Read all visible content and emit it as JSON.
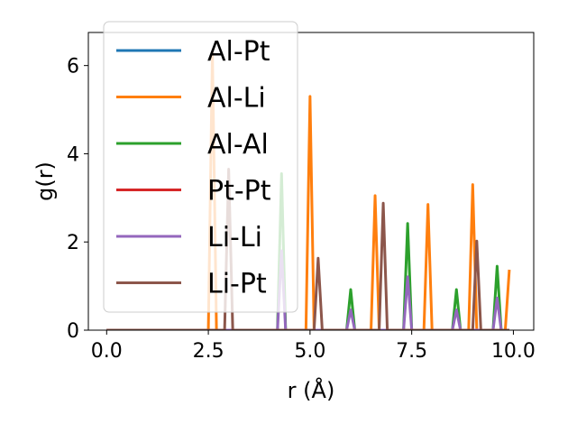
{
  "chart_data": {
    "type": "line",
    "xlabel": "r (Å)",
    "ylabel": "g(r)",
    "xlim": [
      -0.45,
      10.5
    ],
    "ylim": [
      0,
      6.75
    ],
    "xticks": [
      0.0,
      2.5,
      5.0,
      7.5,
      10.0
    ],
    "xtick_labels": [
      "0.0",
      "2.5",
      "5.0",
      "7.5",
      "10.0"
    ],
    "yticks": [
      0,
      2,
      4,
      6
    ],
    "ytick_labels": [
      "0",
      "2",
      "4",
      "6"
    ],
    "grid": false,
    "legend_position": "top-left",
    "series": [
      {
        "name": "Al-Pt",
        "color": "#1f77b4",
        "points": [
          [
            0,
            0
          ],
          [
            9.9,
            0
          ]
        ]
      },
      {
        "name": "Al-Li",
        "color": "#ff7f0e",
        "points": [
          [
            0,
            0
          ],
          [
            2.5,
            0
          ],
          [
            2.6,
            6.3
          ],
          [
            2.7,
            0
          ],
          [
            4.9,
            0
          ],
          [
            5.0,
            5.3
          ],
          [
            5.1,
            0
          ],
          [
            6.5,
            0
          ],
          [
            6.6,
            3.05
          ],
          [
            6.7,
            0
          ],
          [
            7.8,
            0
          ],
          [
            7.9,
            2.85
          ],
          [
            8.0,
            0
          ],
          [
            8.9,
            0
          ],
          [
            9.0,
            3.3
          ],
          [
            9.1,
            0
          ],
          [
            9.8,
            0
          ],
          [
            9.9,
            1.37
          ]
        ]
      },
      {
        "name": "Al-Al",
        "color": "#2ca02c",
        "points": [
          [
            0,
            0
          ],
          [
            4.2,
            0
          ],
          [
            4.3,
            3.55
          ],
          [
            4.4,
            0
          ],
          [
            5.9,
            0
          ],
          [
            6.0,
            0.92
          ],
          [
            6.1,
            0
          ],
          [
            7.3,
            0
          ],
          [
            7.4,
            2.42
          ],
          [
            7.5,
            0
          ],
          [
            8.5,
            0
          ],
          [
            8.6,
            0.92
          ],
          [
            8.7,
            0
          ],
          [
            9.5,
            0
          ],
          [
            9.6,
            1.45
          ],
          [
            9.7,
            0
          ],
          [
            9.9,
            0
          ]
        ]
      },
      {
        "name": "Pt-Pt",
        "color": "#d62728",
        "points": [
          [
            0,
            0
          ],
          [
            9.9,
            0
          ]
        ]
      },
      {
        "name": "Li-Li",
        "color": "#9467bd",
        "points": [
          [
            0,
            0
          ],
          [
            4.2,
            0
          ],
          [
            4.3,
            1.8
          ],
          [
            4.4,
            0
          ],
          [
            5.9,
            0
          ],
          [
            6.0,
            0.46
          ],
          [
            6.1,
            0
          ],
          [
            7.3,
            0
          ],
          [
            7.4,
            1.21
          ],
          [
            7.5,
            0
          ],
          [
            8.5,
            0
          ],
          [
            8.6,
            0.46
          ],
          [
            8.7,
            0
          ],
          [
            9.5,
            0
          ],
          [
            9.6,
            0.73
          ],
          [
            9.7,
            0
          ],
          [
            9.9,
            0
          ]
        ]
      },
      {
        "name": "Li-Pt",
        "color": "#8c564b",
        "points": [
          [
            0,
            0
          ],
          [
            2.9,
            0
          ],
          [
            3.0,
            3.65
          ],
          [
            3.1,
            0
          ],
          [
            5.1,
            0
          ],
          [
            5.2,
            1.63
          ],
          [
            5.3,
            0
          ],
          [
            6.7,
            0
          ],
          [
            6.8,
            2.88
          ],
          [
            6.9,
            0
          ],
          [
            9.0,
            0
          ],
          [
            9.1,
            2.02
          ],
          [
            9.2,
            0
          ],
          [
            9.9,
            0
          ]
        ]
      }
    ]
  }
}
